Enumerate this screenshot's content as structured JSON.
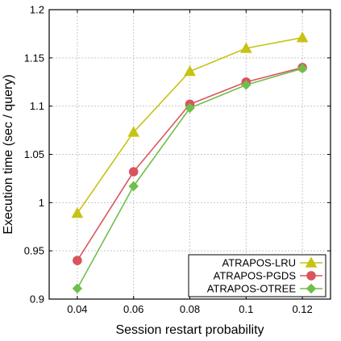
{
  "chart_data": {
    "type": "line",
    "xlabel": "Session restart probability",
    "ylabel": "Execution time (sec / query)",
    "x": [
      0.04,
      0.06,
      0.08,
      0.1,
      0.12
    ],
    "x_tick_labels": [
      "0.04",
      "0.06",
      "0.08",
      "0.1",
      "0.12"
    ],
    "xlim": [
      0.03,
      0.13
    ],
    "ylim": [
      0.9,
      1.2
    ],
    "y_ticks": [
      0.9,
      0.95,
      1.0,
      1.05,
      1.1,
      1.15,
      1.2
    ],
    "y_tick_labels": [
      "0.9",
      "0.95",
      "1",
      "1.05",
      "1.1",
      "1.15",
      "1.2"
    ],
    "grid": true,
    "legend_position": "bottom-right",
    "series": [
      {
        "name": "ATRAPOS-LRU",
        "color": "#c8c214",
        "marker": "triangle",
        "values": [
          0.989,
          1.073,
          1.136,
          1.16,
          1.171
        ]
      },
      {
        "name": "ATRAPOS-PGDS",
        "color": "#d9555e",
        "marker": "circle",
        "values": [
          0.94,
          1.032,
          1.102,
          1.125,
          1.14
        ]
      },
      {
        "name": "ATRAPOS-OTREE",
        "color": "#6fbf4a",
        "marker": "diamond",
        "values": [
          0.911,
          1.017,
          1.098,
          1.122,
          1.139
        ]
      }
    ]
  }
}
